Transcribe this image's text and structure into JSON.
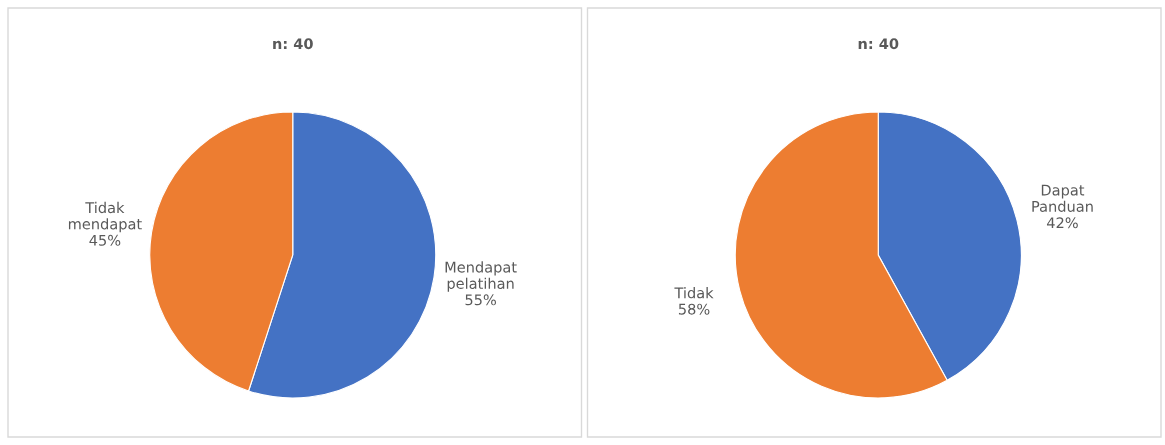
{
  "chart_data": [
    {
      "type": "pie",
      "title": "n: 40",
      "categories": [
        "Mendapat pelatihan",
        "Tidak mendapat"
      ],
      "values": [
        55,
        45
      ],
      "colors": [
        "#4472c4",
        "#ed7d31"
      ],
      "value_labels": [
        "55%",
        "45%"
      ]
    },
    {
      "type": "pie",
      "title": "n: 40",
      "categories": [
        "Dapat Panduan",
        "Tidak"
      ],
      "values": [
        42,
        58
      ],
      "colors": [
        "#4472c4",
        "#ed7d31"
      ],
      "value_labels": [
        "42%",
        "58%"
      ]
    }
  ]
}
